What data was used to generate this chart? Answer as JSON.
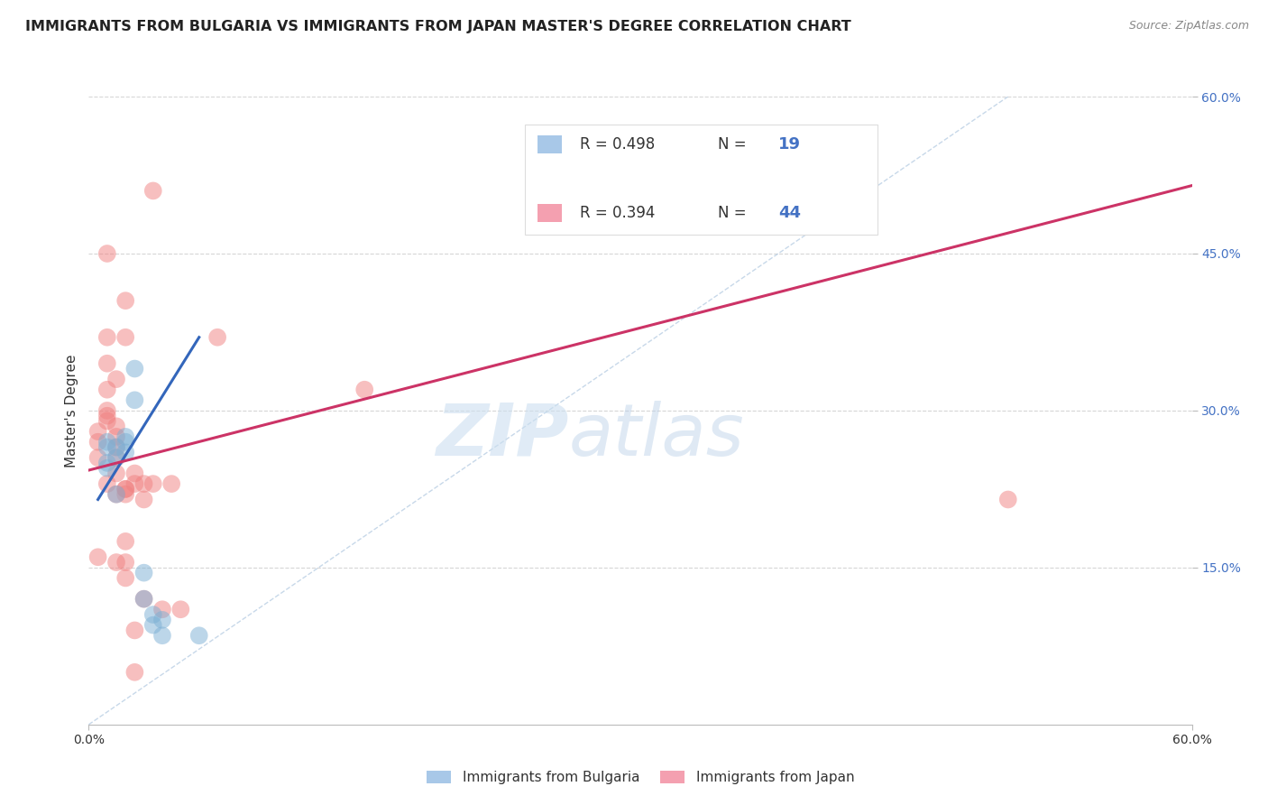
{
  "title": "IMMIGRANTS FROM BULGARIA VS IMMIGRANTS FROM JAPAN MASTER'S DEGREE CORRELATION CHART",
  "source": "Source: ZipAtlas.com",
  "ylabel": "Master's Degree",
  "xlim": [
    0.0,
    0.6
  ],
  "ylim": [
    0.0,
    0.6
  ],
  "yticks": [
    0.15,
    0.3,
    0.45,
    0.6
  ],
  "ytick_labels": [
    "15.0%",
    "30.0%",
    "45.0%",
    "60.0%"
  ],
  "legend_label1": "Immigrants from Bulgaria",
  "legend_label2": "Immigrants from Japan",
  "bulgaria_color": "#7bafd4",
  "japan_color": "#f08080",
  "bulgaria_scatter": [
    [
      0.01,
      0.25
    ],
    [
      0.01,
      0.27
    ],
    [
      0.01,
      0.265
    ],
    [
      0.01,
      0.245
    ],
    [
      0.015,
      0.255
    ],
    [
      0.015,
      0.265
    ],
    [
      0.015,
      0.22
    ],
    [
      0.02,
      0.275
    ],
    [
      0.02,
      0.26
    ],
    [
      0.02,
      0.27
    ],
    [
      0.025,
      0.31
    ],
    [
      0.025,
      0.34
    ],
    [
      0.03,
      0.145
    ],
    [
      0.03,
      0.12
    ],
    [
      0.035,
      0.105
    ],
    [
      0.035,
      0.095
    ],
    [
      0.04,
      0.1
    ],
    [
      0.04,
      0.085
    ],
    [
      0.06,
      0.085
    ]
  ],
  "japan_scatter": [
    [
      0.005,
      0.16
    ],
    [
      0.005,
      0.255
    ],
    [
      0.005,
      0.27
    ],
    [
      0.005,
      0.28
    ],
    [
      0.01,
      0.23
    ],
    [
      0.01,
      0.29
    ],
    [
      0.01,
      0.295
    ],
    [
      0.01,
      0.3
    ],
    [
      0.01,
      0.32
    ],
    [
      0.01,
      0.345
    ],
    [
      0.01,
      0.37
    ],
    [
      0.01,
      0.45
    ],
    [
      0.015,
      0.155
    ],
    [
      0.015,
      0.22
    ],
    [
      0.015,
      0.24
    ],
    [
      0.015,
      0.255
    ],
    [
      0.015,
      0.265
    ],
    [
      0.015,
      0.275
    ],
    [
      0.015,
      0.285
    ],
    [
      0.015,
      0.33
    ],
    [
      0.02,
      0.14
    ],
    [
      0.02,
      0.155
    ],
    [
      0.02,
      0.175
    ],
    [
      0.02,
      0.22
    ],
    [
      0.02,
      0.225
    ],
    [
      0.02,
      0.225
    ],
    [
      0.02,
      0.37
    ],
    [
      0.02,
      0.405
    ],
    [
      0.025,
      0.05
    ],
    [
      0.025,
      0.09
    ],
    [
      0.025,
      0.23
    ],
    [
      0.025,
      0.24
    ],
    [
      0.03,
      0.12
    ],
    [
      0.03,
      0.215
    ],
    [
      0.03,
      0.23
    ],
    [
      0.035,
      0.23
    ],
    [
      0.035,
      0.51
    ],
    [
      0.04,
      0.11
    ],
    [
      0.045,
      0.23
    ],
    [
      0.05,
      0.11
    ],
    [
      0.07,
      0.37
    ],
    [
      0.15,
      0.32
    ],
    [
      0.4,
      0.53
    ],
    [
      0.5,
      0.215
    ]
  ],
  "bulgaria_regression": {
    "x_start": 0.005,
    "y_start": 0.215,
    "x_end": 0.06,
    "y_end": 0.37
  },
  "japan_regression": {
    "x_start": 0.0,
    "y_start": 0.243,
    "x_end": 0.6,
    "y_end": 0.515
  },
  "diagonal_line": {
    "x_start": 0.0,
    "y_start": 0.0,
    "x_end": 0.5,
    "y_end": 0.6
  },
  "watermark_zip": "ZIP",
  "watermark_atlas": "atlas",
  "background_color": "#ffffff",
  "grid_color": "#cccccc",
  "title_fontsize": 11.5,
  "source_fontsize": 9,
  "axis_label_fontsize": 11,
  "tick_fontsize": 10,
  "legend_R1": "R = 0.498",
  "legend_N1": "19",
  "legend_R2": "R = 0.394",
  "legend_N2": "44"
}
